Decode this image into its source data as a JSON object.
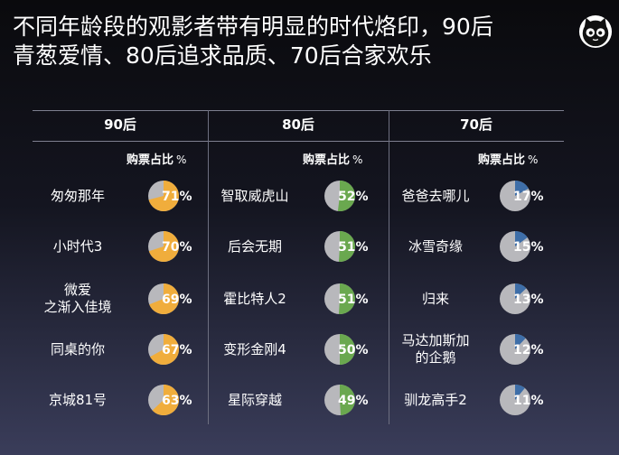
{
  "title": {
    "line1": "不同年龄段的观影者带有明显的时代烙印，90后",
    "line2": "青葱爱情、80后追求品质、70后合家欢乐"
  },
  "logo_icon": "cat-face-icon",
  "chart_data": {
    "type": "pie",
    "pct_header": "购票占比",
    "pct_unit": "%",
    "colors": {
      "remainder": "#b8b8bc",
      "90后": "#f0ad3c",
      "80后": "#6aa84f",
      "70后": "#3e6ea8"
    },
    "groups": [
      {
        "name": "90后",
        "color": "#f0ad3c",
        "items": [
          {
            "movie": [
              "匆匆那年"
            ],
            "value": 71,
            "label": "71%"
          },
          {
            "movie": [
              "小时代3"
            ],
            "value": 70,
            "label": "70%"
          },
          {
            "movie": [
              "微爱",
              "之渐入佳境"
            ],
            "value": 69,
            "label": "69%"
          },
          {
            "movie": [
              "同桌的你"
            ],
            "value": 67,
            "label": "67%"
          },
          {
            "movie": [
              "京城81号"
            ],
            "value": 63,
            "label": "63%"
          }
        ]
      },
      {
        "name": "80后",
        "color": "#6aa84f",
        "items": [
          {
            "movie": [
              "智取威虎山"
            ],
            "value": 52,
            "label": "52%"
          },
          {
            "movie": [
              "后会无期"
            ],
            "value": 51,
            "label": "51%"
          },
          {
            "movie": [
              "霍比特人2"
            ],
            "value": 51,
            "label": "51%"
          },
          {
            "movie": [
              "变形金刚4"
            ],
            "value": 50,
            "label": "50%"
          },
          {
            "movie": [
              "星际穿越"
            ],
            "value": 49,
            "label": "49%"
          }
        ]
      },
      {
        "name": "70后",
        "color": "#3e6ea8",
        "items": [
          {
            "movie": [
              "爸爸去哪儿"
            ],
            "value": 17,
            "label": "17%"
          },
          {
            "movie": [
              "冰雪奇缘"
            ],
            "value": 15,
            "label": "15%"
          },
          {
            "movie": [
              "归来"
            ],
            "value": 13,
            "label": "13%"
          },
          {
            "movie": [
              "马达加斯加",
              "的企鹅"
            ],
            "value": 12,
            "label": "12%"
          },
          {
            "movie": [
              "驯龙高手2"
            ],
            "value": 11,
            "label": "11%"
          }
        ]
      }
    ]
  }
}
